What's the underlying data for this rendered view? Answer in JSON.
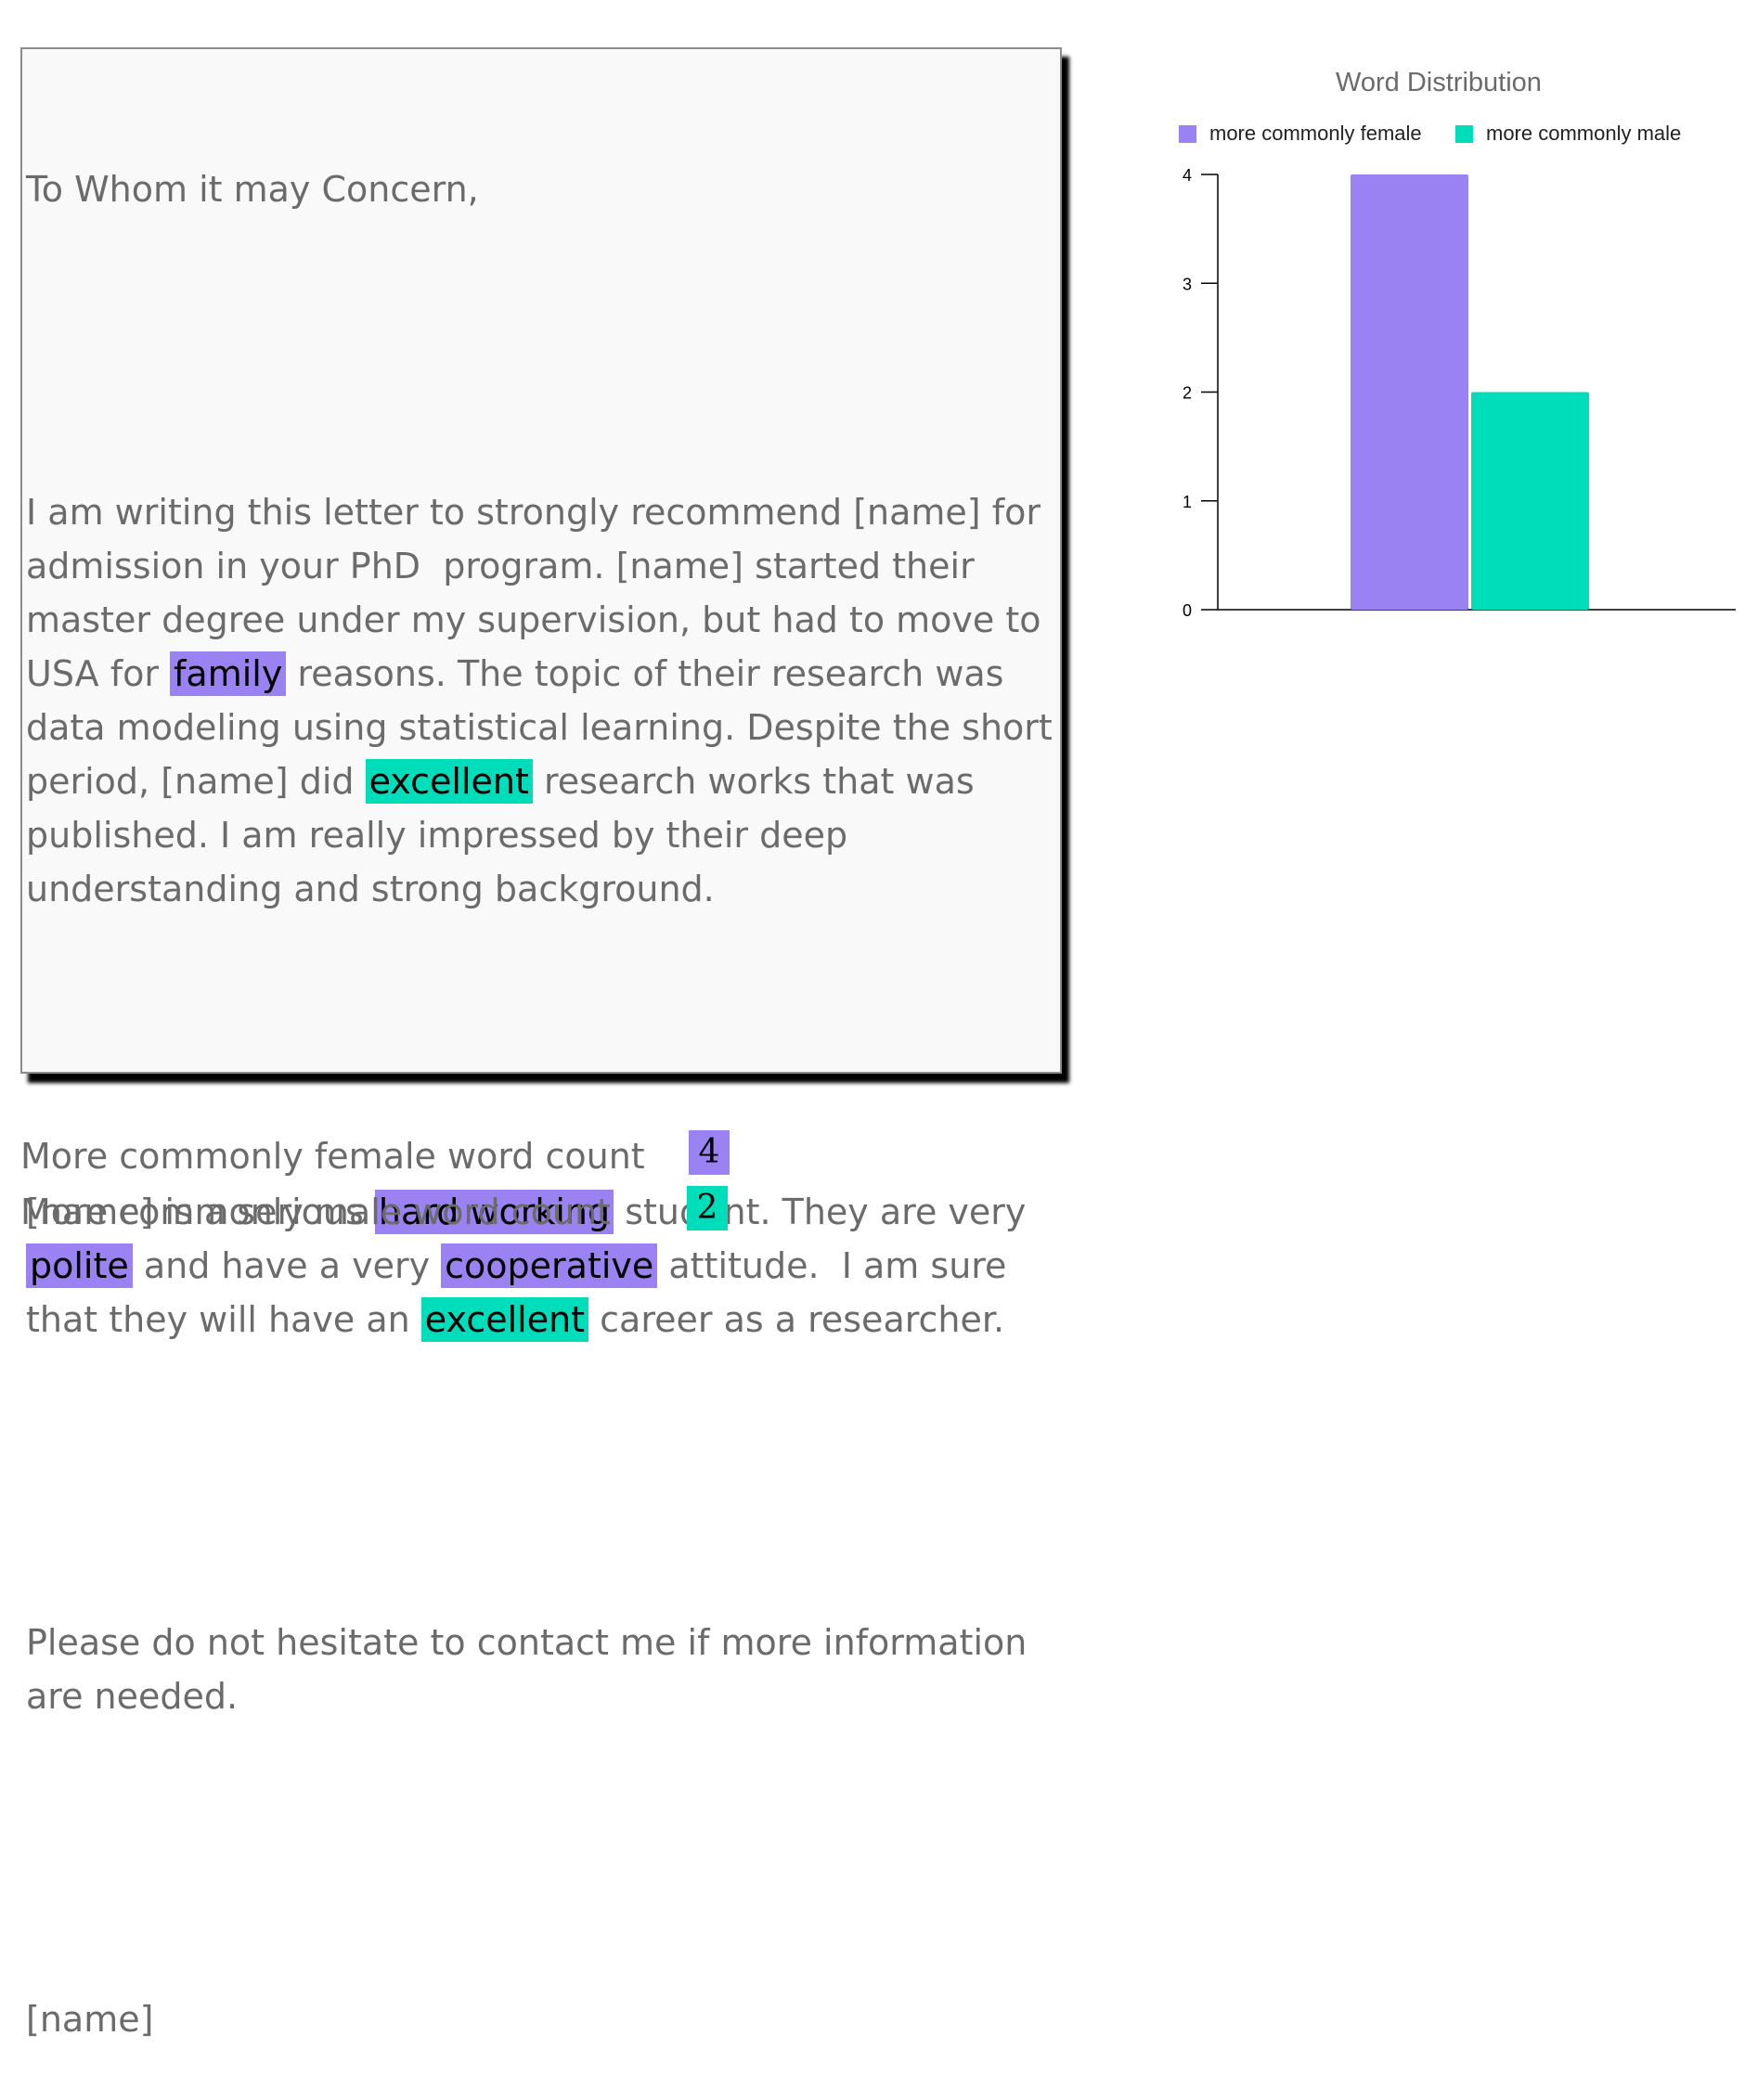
{
  "letter": {
    "greeting": "To Whom it may Concern,",
    "p1": [
      {
        "t": "I am writing this letter to strongly recommend [name] for admission in your PhD  program. [name] started their master degree under my supervision, but had to move to USA for "
      },
      {
        "t": "family",
        "hl": "female"
      },
      {
        "t": " reasons. The topic of their research was data modeling using statistical learning. Despite the short period, [name] did "
      },
      {
        "t": "excellent",
        "hl": "male"
      },
      {
        "t": " research works that was published. I am really impressed by their deep understanding and strong background."
      }
    ],
    "p2": [
      {
        "t": "[name] is a serious "
      },
      {
        "t": "hard working",
        "hl": "female"
      },
      {
        "t": " student. They are very "
      },
      {
        "t": "polite",
        "hl": "female"
      },
      {
        "t": " and have a very "
      },
      {
        "t": "cooperative",
        "hl": "female"
      },
      {
        "t": " attitude.  I am sure that they will have an "
      },
      {
        "t": "excellent",
        "hl": "male"
      },
      {
        "t": " career as a researcher."
      }
    ],
    "p3": "Please do not hesitate to contact me if more information are needed.",
    "signature": "[name]"
  },
  "counts": {
    "female_label": "More commonly female word count",
    "female_value": "4",
    "male_label": "More commonly male word count",
    "male_value": "2"
  },
  "colors": {
    "female": "#9b82f2",
    "male": "#00ddbb",
    "text": "#6b6b6b"
  },
  "chart_data": {
    "type": "bar",
    "title": "Word Distribution",
    "xlabel": "",
    "ylabel": "",
    "categories": [
      ""
    ],
    "series": [
      {
        "name": "more commonly female",
        "values": [
          4
        ],
        "color": "#9b82f2"
      },
      {
        "name": "more commonly male",
        "values": [
          2
        ],
        "color": "#00ddbb"
      }
    ],
    "ylim": [
      0,
      4
    ],
    "yticks": [
      0,
      1,
      2,
      3,
      4
    ],
    "legend": "top",
    "grid": false
  }
}
